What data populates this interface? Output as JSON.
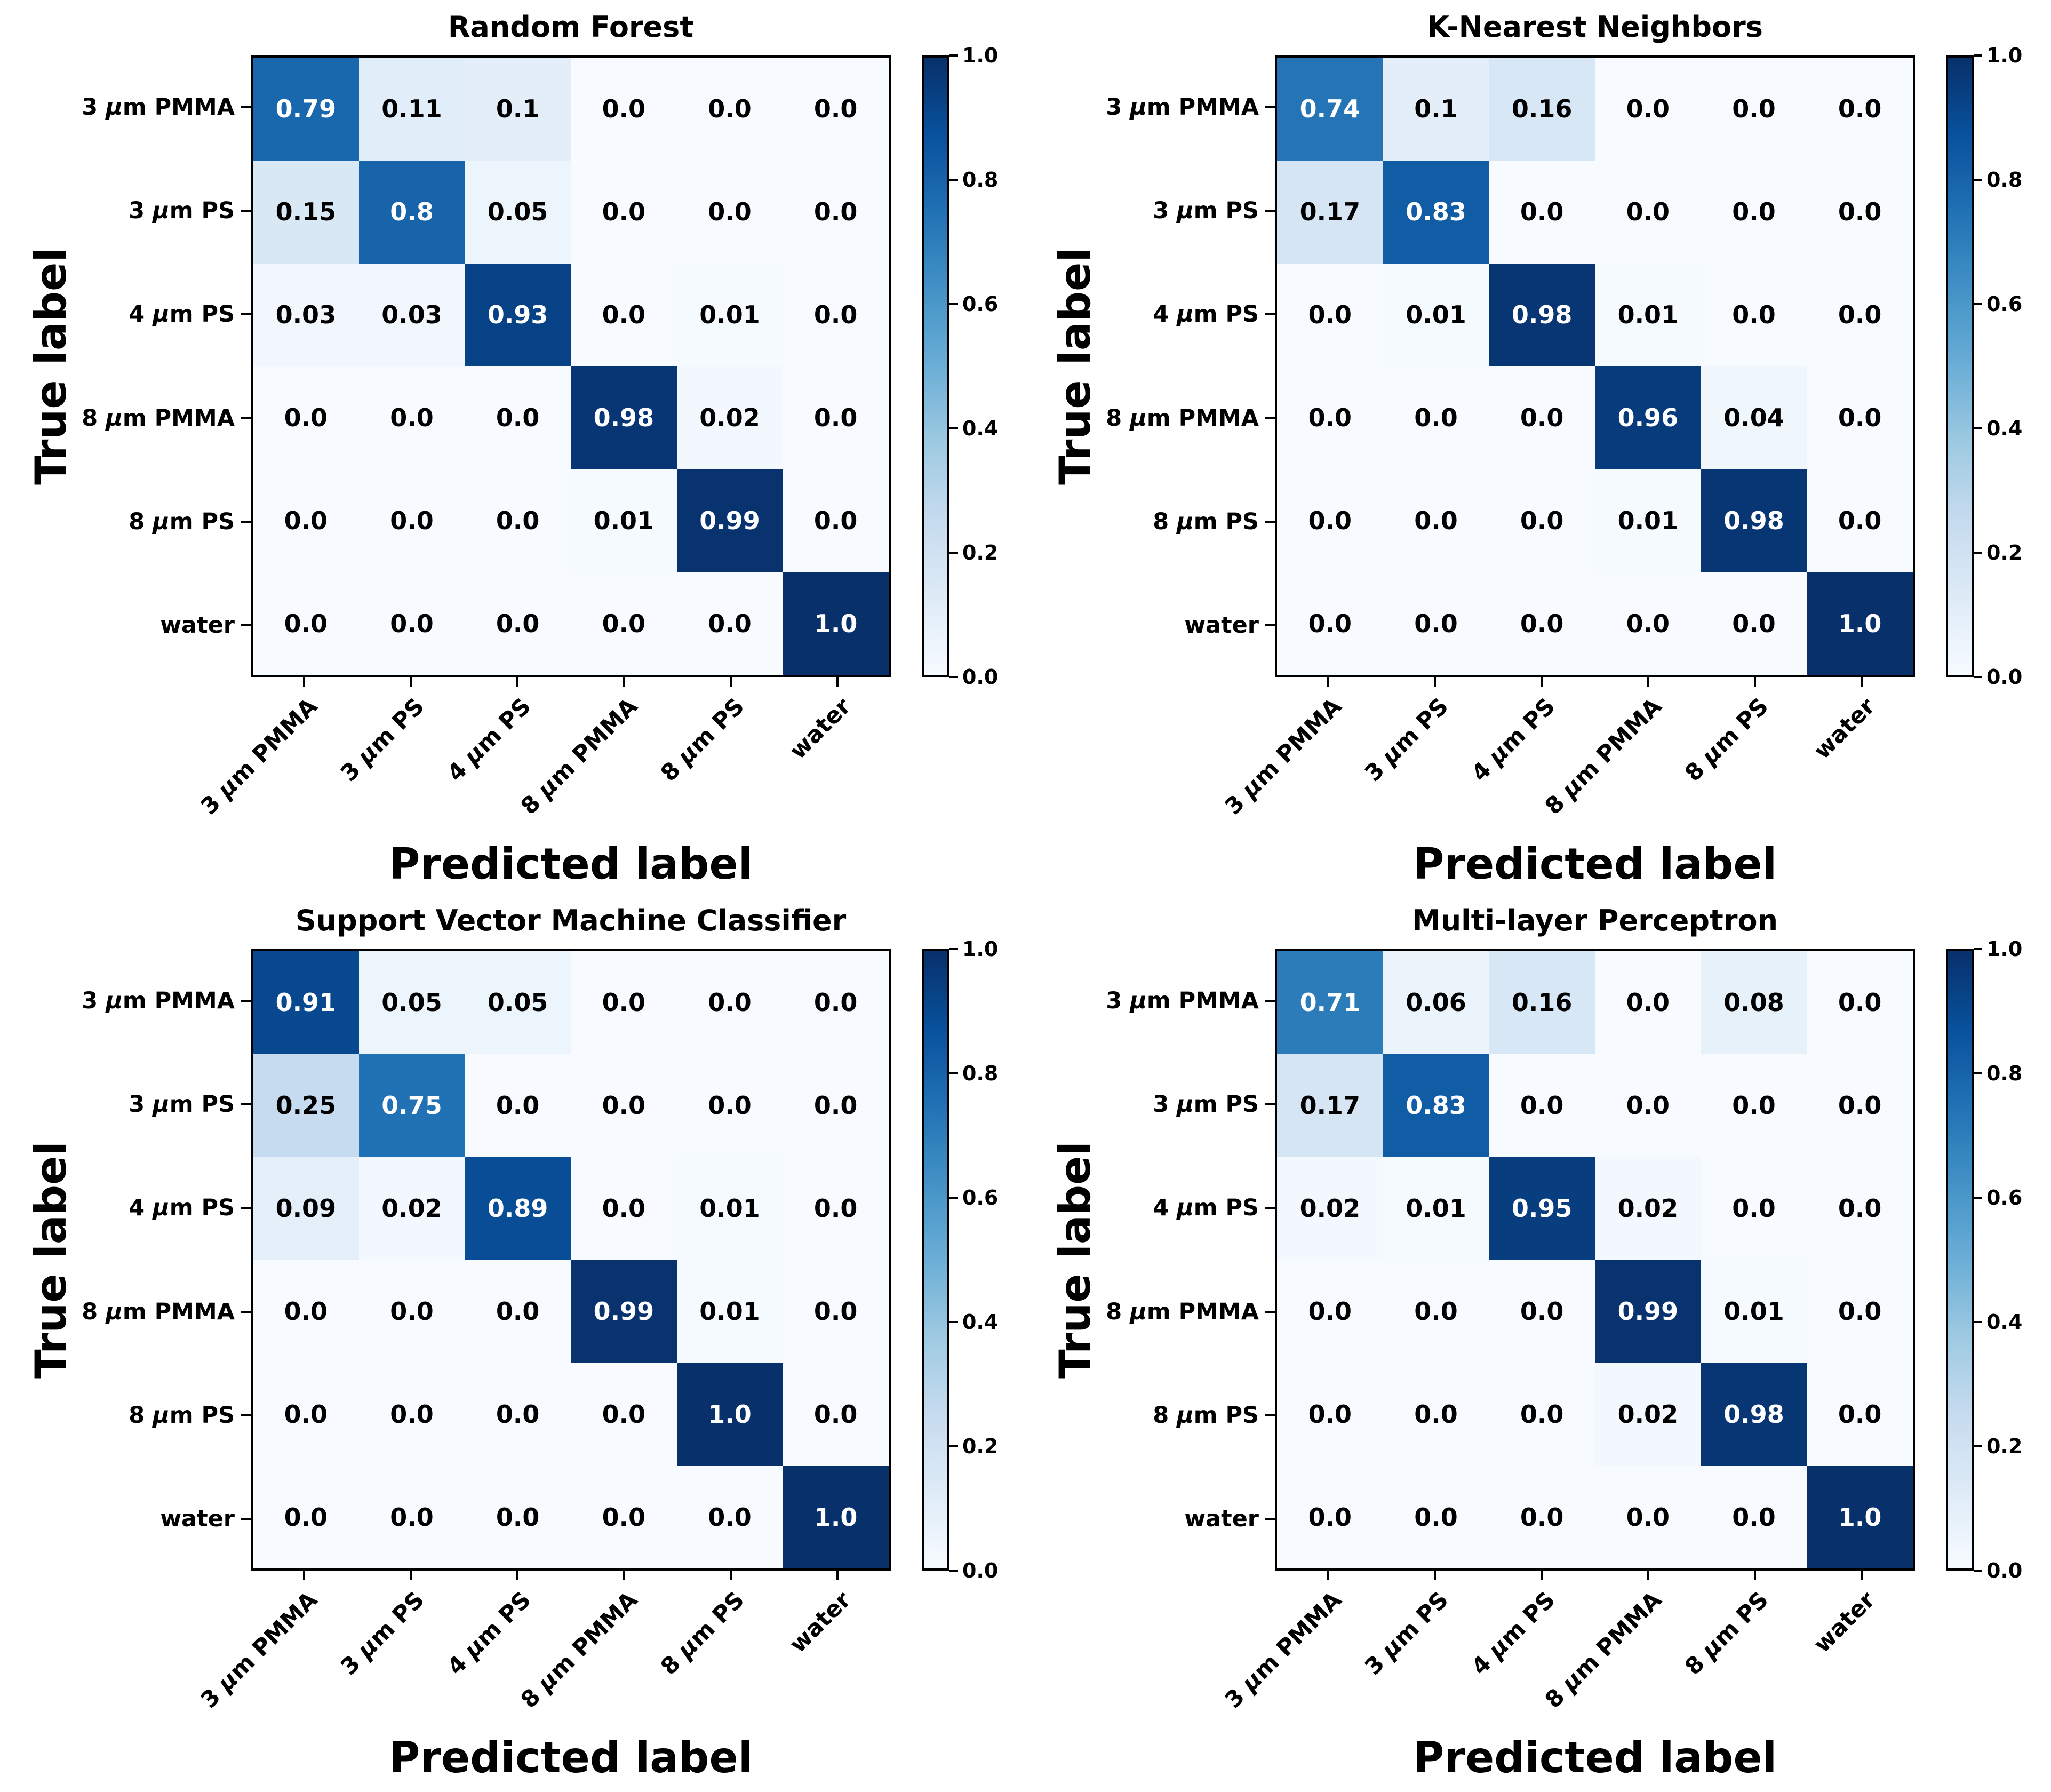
{
  "figure": {
    "xlabel": "Predicted label",
    "ylabel": "True label",
    "classes": [
      "3 μm PMMA",
      "3 μm PS",
      "4 μm PS",
      "8 μm PMMA",
      "8 μm PS",
      "water"
    ],
    "colorbar": {
      "min": 0.0,
      "max": 1.0,
      "ticks": [
        1.0,
        0.8,
        0.6,
        0.4,
        0.2,
        0.0
      ]
    },
    "colormap_name": "Blues",
    "colormap_anchors_rgb": [
      [
        247,
        251,
        255
      ],
      [
        222,
        235,
        247
      ],
      [
        198,
        219,
        239
      ],
      [
        158,
        202,
        225
      ],
      [
        107,
        174,
        214
      ],
      [
        66,
        146,
        198
      ],
      [
        33,
        113,
        181
      ],
      [
        8,
        81,
        156
      ],
      [
        8,
        48,
        107
      ]
    ],
    "cell_text_color_threshold": 0.5
  },
  "chart_data": [
    {
      "type": "heatmap",
      "title": "Random Forest",
      "xlabel": "Predicted label",
      "ylabel": "True label",
      "x_categories": [
        "3 μm PMMA",
        "3 μm PS",
        "4 μm PS",
        "8 μm PMMA",
        "8 μm PS",
        "water"
      ],
      "y_categories": [
        "3 μm PMMA",
        "3 μm PS",
        "4 μm PS",
        "8 μm PMMA",
        "8 μm PS",
        "water"
      ],
      "values": [
        [
          0.79,
          0.11,
          0.1,
          0.0,
          0.0,
          0.0
        ],
        [
          0.15,
          0.8,
          0.05,
          0.0,
          0.0,
          0.0
        ],
        [
          0.03,
          0.03,
          0.93,
          0.0,
          0.01,
          0.0
        ],
        [
          0.0,
          0.0,
          0.0,
          0.98,
          0.02,
          0.0
        ],
        [
          0.0,
          0.0,
          0.0,
          0.01,
          0.99,
          0.0
        ],
        [
          0.0,
          0.0,
          0.0,
          0.0,
          0.0,
          1.0
        ]
      ],
      "colorbar": {
        "min": 0.0,
        "max": 1.0,
        "ticks": [
          0.0,
          0.2,
          0.4,
          0.6,
          0.8,
          1.0
        ],
        "colormap": "Blues",
        "position": "right"
      }
    },
    {
      "type": "heatmap",
      "title": "K-Nearest Neighbors",
      "xlabel": "Predicted label",
      "ylabel": "True label",
      "x_categories": [
        "3 μm PMMA",
        "3 μm PS",
        "4 μm PS",
        "8 μm PMMA",
        "8 μm PS",
        "water"
      ],
      "y_categories": [
        "3 μm PMMA",
        "3 μm PS",
        "4 μm PS",
        "8 μm PMMA",
        "8 μm PS",
        "water"
      ],
      "values": [
        [
          0.74,
          0.1,
          0.16,
          0.0,
          0.0,
          0.0
        ],
        [
          0.17,
          0.83,
          0.0,
          0.0,
          0.0,
          0.0
        ],
        [
          0.0,
          0.01,
          0.98,
          0.01,
          0.0,
          0.0
        ],
        [
          0.0,
          0.0,
          0.0,
          0.96,
          0.04,
          0.0
        ],
        [
          0.0,
          0.0,
          0.0,
          0.01,
          0.98,
          0.0
        ],
        [
          0.0,
          0.0,
          0.0,
          0.0,
          0.0,
          1.0
        ]
      ],
      "colorbar": {
        "min": 0.0,
        "max": 1.0,
        "ticks": [
          0.0,
          0.2,
          0.4,
          0.6,
          0.8,
          1.0
        ],
        "colormap": "Blues",
        "position": "right"
      }
    },
    {
      "type": "heatmap",
      "title": "Support Vector Machine Classifier",
      "xlabel": "Predicted label",
      "ylabel": "True label",
      "x_categories": [
        "3 μm PMMA",
        "3 μm PS",
        "4 μm PS",
        "8 μm PMMA",
        "8 μm PS",
        "water"
      ],
      "y_categories": [
        "3 μm PMMA",
        "3 μm PS",
        "4 μm PS",
        "8 μm PMMA",
        "8 μm PS",
        "water"
      ],
      "values": [
        [
          0.91,
          0.05,
          0.05,
          0.0,
          0.0,
          0.0
        ],
        [
          0.25,
          0.75,
          0.0,
          0.0,
          0.0,
          0.0
        ],
        [
          0.09,
          0.02,
          0.89,
          0.0,
          0.01,
          0.0
        ],
        [
          0.0,
          0.0,
          0.0,
          0.99,
          0.01,
          0.0
        ],
        [
          0.0,
          0.0,
          0.0,
          0.0,
          1.0,
          0.0
        ],
        [
          0.0,
          0.0,
          0.0,
          0.0,
          0.0,
          1.0
        ]
      ],
      "colorbar": {
        "min": 0.0,
        "max": 1.0,
        "ticks": [
          0.0,
          0.2,
          0.4,
          0.6,
          0.8,
          1.0
        ],
        "colormap": "Blues",
        "position": "right"
      }
    },
    {
      "type": "heatmap",
      "title": "Multi-layer Perceptron",
      "xlabel": "Predicted label",
      "ylabel": "True label",
      "x_categories": [
        "3 μm PMMA",
        "3 μm PS",
        "4 μm PS",
        "8 μm PMMA",
        "8 μm PS",
        "water"
      ],
      "y_categories": [
        "3 μm PMMA",
        "3 μm PS",
        "4 μm PS",
        "8 μm PMMA",
        "8 μm PS",
        "water"
      ],
      "values": [
        [
          0.71,
          0.06,
          0.16,
          0.0,
          0.08,
          0.0
        ],
        [
          0.17,
          0.83,
          0.0,
          0.0,
          0.0,
          0.0
        ],
        [
          0.02,
          0.01,
          0.95,
          0.02,
          0.0,
          0.0
        ],
        [
          0.0,
          0.0,
          0.0,
          0.99,
          0.01,
          0.0
        ],
        [
          0.0,
          0.0,
          0.0,
          0.02,
          0.98,
          0.0
        ],
        [
          0.0,
          0.0,
          0.0,
          0.0,
          0.0,
          1.0
        ]
      ],
      "colorbar": {
        "min": 0.0,
        "max": 1.0,
        "ticks": [
          0.0,
          0.2,
          0.4,
          0.6,
          0.8,
          1.0
        ],
        "colormap": "Blues",
        "position": "right"
      }
    }
  ]
}
